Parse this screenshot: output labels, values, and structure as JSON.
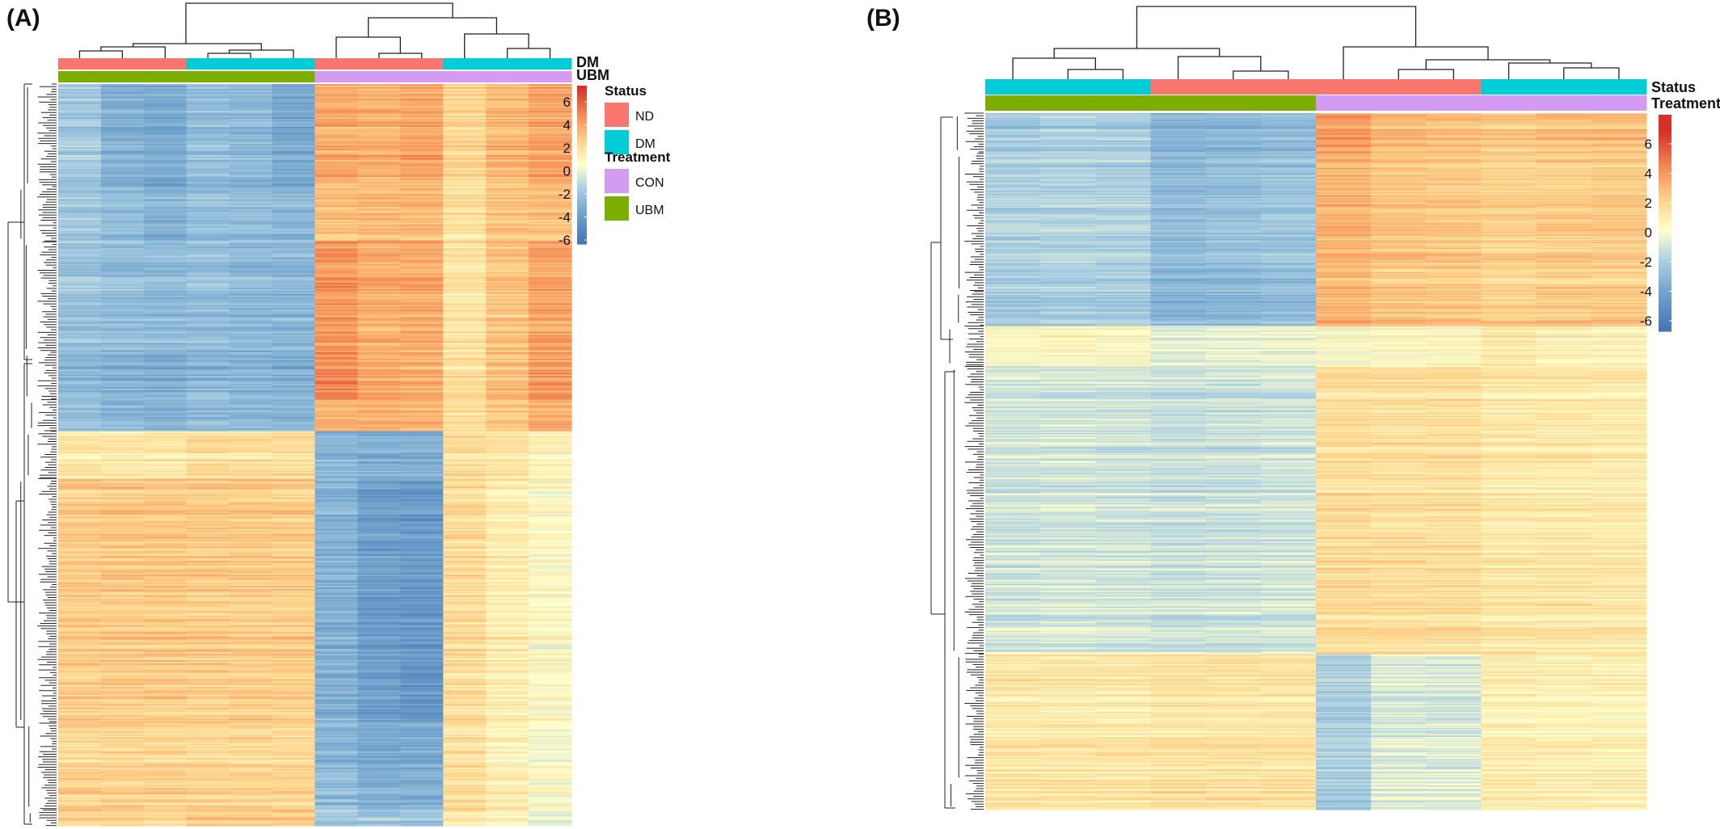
{
  "chart_data": [
    {
      "panel": "(A)",
      "type": "heatmap",
      "n_columns": 12,
      "column_annotations": {
        "Status": [
          "ND",
          "ND",
          "ND",
          "DM",
          "DM",
          "DM",
          "ND",
          "ND",
          "ND",
          "DM",
          "DM",
          "DM"
        ],
        "Treatment": [
          "UBM",
          "UBM",
          "UBM",
          "UBM",
          "UBM",
          "UBM",
          "CON",
          "CON",
          "CON",
          "CON",
          "CON",
          "CON"
        ]
      },
      "annotation_bar_labels": [
        "DM",
        "UBM"
      ],
      "row_blocks": [
        {
          "rows": 65,
          "values": [
            -2.3,
            -3.6,
            -3.8,
            -2.9,
            -3.1,
            -3.9,
            3.2,
            3.0,
            3.3,
            1.8,
            2.8,
            3.4
          ]
        },
        {
          "rows": 35,
          "values": [
            -2.2,
            -2.8,
            -3.2,
            -2.7,
            -2.7,
            -3.0,
            2.7,
            2.9,
            2.9,
            1.5,
            2.6,
            2.8
          ]
        },
        {
          "rows": 70,
          "values": [
            -2.6,
            -2.9,
            -3.0,
            -2.8,
            -3.1,
            -3.2,
            3.8,
            3.1,
            3.2,
            1.2,
            2.4,
            3.4
          ]
        },
        {
          "rows": 30,
          "values": [
            -3.2,
            -3.5,
            -3.7,
            -3.2,
            -3.4,
            -3.6,
            4.2,
            3.2,
            3.2,
            1.5,
            2.6,
            3.6
          ]
        },
        {
          "rows": 20,
          "values": [
            -2.7,
            -3.0,
            -3.2,
            -2.9,
            -3.1,
            -3.1,
            3.1,
            3.0,
            3.0,
            1.6,
            2.4,
            3.3
          ]
        },
        {
          "rows": 30,
          "values": [
            1.0,
            1.1,
            1.1,
            1.5,
            1.5,
            1.5,
            -3.2,
            -3.6,
            -3.5,
            1.5,
            1.2,
            0.6
          ]
        },
        {
          "rows": 155,
          "values": [
            2.2,
            2.3,
            2.3,
            2.2,
            2.2,
            2.2,
            -3.4,
            -4.3,
            -4.6,
            1.6,
            0.9,
            0.2
          ]
        },
        {
          "rows": 55,
          "values": [
            1.8,
            1.9,
            1.9,
            1.8,
            1.8,
            1.8,
            -3.1,
            -3.6,
            -3.6,
            1.4,
            0.7,
            -0.1
          ]
        },
        {
          "rows": 10,
          "values": [
            2.0,
            2.0,
            2.0,
            2.4,
            2.4,
            2.4,
            -2.2,
            -2.3,
            -2.3,
            1.2,
            0.5,
            -0.4
          ]
        }
      ],
      "legend": {
        "scale_ticks": [
          "6",
          "4",
          "2",
          "0",
          "-2",
          "-4",
          "-6"
        ],
        "status_title": "Status",
        "status_items": [
          {
            "label": "ND",
            "color": "#F8766D"
          },
          {
            "label": "DM",
            "color": "#00CDD6"
          }
        ],
        "treatment_title": "Treatment",
        "treatment_items": [
          {
            "label": "CON",
            "color": "#D39BF2"
          },
          {
            "label": "UBM",
            "color": "#7CAE00"
          }
        ]
      },
      "value_range": [
        -6.5,
        6.5
      ]
    },
    {
      "panel": "(B)",
      "type": "heatmap",
      "n_columns": 12,
      "column_annotations": {
        "Status": [
          "DM",
          "DM",
          "DM",
          "ND",
          "ND",
          "ND",
          "ND",
          "ND",
          "ND",
          "DM",
          "DM",
          "DM"
        ],
        "Treatment": [
          "UBM",
          "UBM",
          "UBM",
          "UBM",
          "UBM",
          "UBM",
          "CON",
          "CON",
          "CON",
          "CON",
          "CON",
          "CON"
        ]
      },
      "annotation_bar_labels": [
        "Status",
        "Treatment"
      ],
      "row_blocks": [
        {
          "rows": 35,
          "values": [
            -2.4,
            -2.1,
            -2.3,
            -3.4,
            -3.2,
            -3.0,
            3.6,
            2.8,
            2.6,
            2.3,
            2.5,
            2.6
          ]
        },
        {
          "rows": 120,
          "values": [
            -2.0,
            -1.9,
            -2.0,
            -3.0,
            -2.8,
            -2.6,
            2.9,
            2.4,
            2.3,
            2.0,
            2.1,
            2.2
          ]
        },
        {
          "rows": 30,
          "values": [
            -2.3,
            -2.1,
            -2.2,
            -3.2,
            -3.0,
            -2.8,
            3.1,
            2.6,
            2.5,
            2.2,
            2.3,
            2.4
          ]
        },
        {
          "rows": 35,
          "values": [
            0.3,
            0.5,
            0.3,
            -0.6,
            -0.4,
            -0.3,
            0.2,
            0.4,
            0.5,
            1.2,
            0.8,
            0.6
          ]
        },
        {
          "rows": 250,
          "values": [
            -1.1,
            -1.0,
            -1.1,
            -1.3,
            -1.2,
            -1.1,
            1.6,
            1.5,
            1.5,
            1.1,
            1.1,
            1.0
          ]
        },
        {
          "rows": 110,
          "values": [
            1.1,
            1.1,
            1.1,
            1.3,
            1.3,
            1.2,
            -2.0,
            -0.8,
            -0.9,
            0.8,
            0.7,
            0.7
          ]
        },
        {
          "rows": 25,
          "values": [
            1.2,
            1.2,
            1.2,
            1.4,
            1.4,
            1.3,
            -2.4,
            -0.7,
            -0.8,
            0.8,
            0.7,
            0.6
          ]
        }
      ],
      "legend": {
        "scale_ticks": [
          "6",
          "4",
          "2",
          "0",
          "-2",
          "-4",
          "-6"
        ]
      },
      "value_range": [
        -6.5,
        7.5
      ]
    }
  ]
}
